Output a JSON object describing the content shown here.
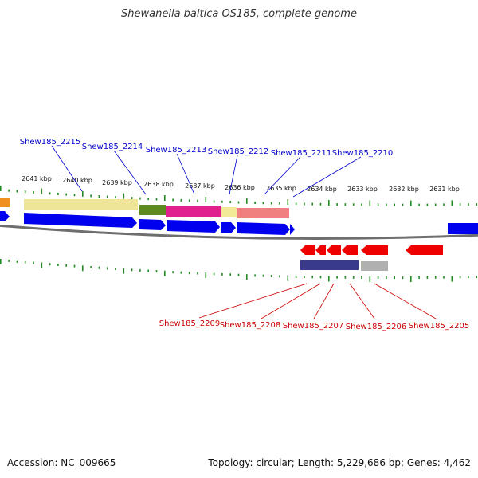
{
  "title": "Shewanella baltica OS185, complete genome",
  "footer": {
    "accession": "Accession: NC_009665",
    "topology": "Topology: circular; Length: 5,229,686 bp; Genes: 4,462"
  },
  "colors": {
    "forward_gene": "#0000ee",
    "reverse_gene": "#ee0000",
    "forward_label": "#0000cc",
    "reverse_label": "#cc0000",
    "ticks": "#228b22",
    "backbone": "#777777"
  },
  "scale": {
    "labels": [
      "2641 kbp",
      "2640 kbp",
      "2639 kbp",
      "2638 kbp",
      "2637 kbp",
      "2636 kbp",
      "2635 kbp",
      "2634 kbp",
      "2633 kbp",
      "2632 kbp",
      "2631 kbp"
    ]
  },
  "forward_genes": [
    "Shew185_2215",
    "Shew185_2214",
    "Shew185_2213",
    "Shew185_2212",
    "Shew185_2211",
    "Shew185_2210"
  ],
  "reverse_genes": [
    "Shew185_2209",
    "Shew185_2208",
    "Shew185_2207",
    "Shew185_2206",
    "Shew185_2205"
  ]
}
